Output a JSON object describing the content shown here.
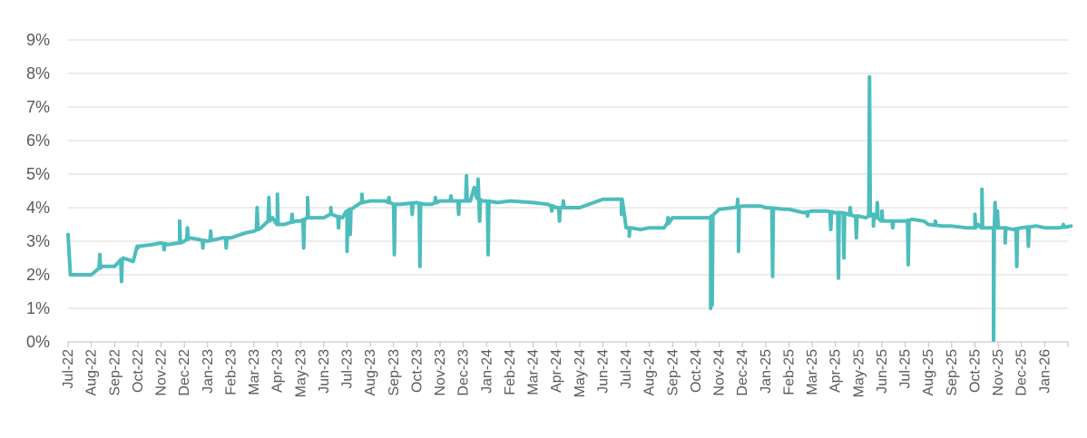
{
  "chart_data": {
    "type": "line",
    "title": "",
    "xlabel": "",
    "ylabel": "",
    "x_unit": "month",
    "x_ticks": [
      "Jul-22",
      "Aug-22",
      "Sep-22",
      "Oct-22",
      "Nov-22",
      "Dec-22",
      "Jan-23",
      "Feb-23",
      "Mar-23",
      "Apr-23",
      "May-23",
      "Jun-23",
      "Jul-23",
      "Aug-23",
      "Sep-23",
      "Oct-23",
      "Nov-23",
      "Dec-23",
      "Jan-24",
      "Feb-24",
      "Mar-24",
      "Apr-24",
      "May-24",
      "Jun-24",
      "Jul-24",
      "Aug-24",
      "Sep-24",
      "Oct-24",
      "Nov-24",
      "Dec-24",
      "Jan-25",
      "Feb-25",
      "Mar-25",
      "Apr-25",
      "May-25",
      "Jun-25",
      "Jul-25",
      "Aug-25",
      "Sep-25",
      "Oct-25",
      "Nov-25",
      "Dec-25",
      "Jan-26"
    ],
    "y_ticks": [
      "0%",
      "1%",
      "2%",
      "3%",
      "4%",
      "5%",
      "6%",
      "7%",
      "8%",
      "9%"
    ],
    "ylim": [
      0,
      9
    ],
    "xlim": [
      "Jul-22",
      "Feb-26"
    ],
    "grid": "horizontal",
    "legend": "none",
    "color": "#4dbdbc",
    "series": [
      {
        "x": [
          "Jul-22",
          "Jul-22",
          "Aug-22",
          "Aug-22",
          "Aug-22",
          "Sep-22",
          "Sep-22",
          "Sep-22",
          "Oct-22",
          "Oct-22",
          "Nov-22",
          "Nov-22",
          "Nov-22",
          "Dec-22",
          "Dec-22",
          "Dec-22",
          "Jan-23",
          "Jan-23",
          "Feb-23",
          "Feb-23",
          "Mar-23",
          "Mar-23",
          "Mar-23",
          "Apr-23",
          "Apr-23",
          "Apr-23",
          "May-23",
          "May-23",
          "May-23",
          "Jun-23",
          "Jun-23",
          "Jun-23",
          "Jul-23",
          "Jul-23",
          "Aug-23",
          "Aug-23",
          "Sep-23",
          "Sep-23",
          "Oct-23",
          "Oct-23",
          "Oct-23",
          "Nov-23",
          "Nov-23",
          "Dec-23",
          "Dec-23",
          "Dec-23",
          "Dec-23",
          "Dec-23",
          "Jan-24",
          "Jan-24",
          "Feb-24",
          "Mar-24",
          "Mar-24",
          "Apr-24",
          "Apr-24",
          "May-24",
          "Jun-24",
          "Jun-24",
          "Jul-24",
          "Jul-24",
          "Jul-24",
          "Aug-24",
          "Aug-24",
          "Sep-24",
          "Sep-24",
          "Oct-24",
          "Oct-24",
          "Oct-24",
          "Nov-24",
          "Nov-24",
          "Dec-24",
          "Dec-24",
          "Dec-24",
          "Jan-25",
          "Jan-25",
          "Jan-25",
          "Feb-25",
          "Feb-25",
          "Mar-25",
          "Mar-25",
          "Apr-25",
          "Apr-25",
          "Apr-25",
          "May-25",
          "May-25",
          "May-25",
          "May-25",
          "Jun-25",
          "Jun-25",
          "Jul-25",
          "Jul-25",
          "Jul-25",
          "Aug-25",
          "Aug-25",
          "Sep-25",
          "Sep-25",
          "Oct-25",
          "Oct-25",
          "Oct-25",
          "Oct-25",
          "Nov-25",
          "Nov-25",
          "Nov-25",
          "Dec-25",
          "Dec-25",
          "Jan-26",
          "Jan-26",
          "Feb-26"
        ],
        "d": [
          1,
          4,
          1,
          15,
          28,
          1,
          12,
          25,
          1,
          20,
          1,
          10,
          25,
          1,
          8,
          20,
          1,
          20,
          1,
          20,
          1,
          10,
          25,
          1,
          10,
          25,
          1,
          10,
          25,
          1,
          10,
          25,
          1,
          20,
          1,
          20,
          1,
          10,
          1,
          10,
          20,
          1,
          20,
          1,
          10,
          15,
          18,
          25,
          1,
          15,
          1,
          1,
          20,
          1,
          20,
          1,
          1,
          25,
          1,
          5,
          20,
          1,
          20,
          1,
          20,
          1,
          20,
          24,
          1,
          20,
          1,
          10,
          25,
          1,
          5,
          25,
          1,
          20,
          1,
          20,
          1,
          10,
          25,
          1,
          10,
          20,
          30,
          1,
          20,
          1,
          10,
          25,
          1,
          20,
          1,
          20,
          1,
          5,
          10,
          25,
          1,
          10,
          20,
          1,
          20,
          1,
          20,
          5
        ],
        "values": [
          3.2,
          2.0,
          2.0,
          2.25,
          2.25,
          2.25,
          2.5,
          2.4,
          2.85,
          2.9,
          2.95,
          2.9,
          2.95,
          3.0,
          3.1,
          3.05,
          3.0,
          3.1,
          3.1,
          3.25,
          3.3,
          3.4,
          3.7,
          3.5,
          3.5,
          3.6,
          3.6,
          3.7,
          3.7,
          3.7,
          3.8,
          3.7,
          3.9,
          4.15,
          4.2,
          4.2,
          4.1,
          4.1,
          4.15,
          4.1,
          4.1,
          4.2,
          4.2,
          4.2,
          4.2,
          4.6,
          4.3,
          4.2,
          4.2,
          4.15,
          4.2,
          4.15,
          4.1,
          4.0,
          4.0,
          4.0,
          4.25,
          4.25,
          3.4,
          3.4,
          3.35,
          3.4,
          3.4,
          3.7,
          3.7,
          3.7,
          3.7,
          3.8,
          3.95,
          4.0,
          4.05,
          4.05,
          4.05,
          4.0,
          4.0,
          3.95,
          3.95,
          3.85,
          3.9,
          3.9,
          3.85,
          3.85,
          3.75,
          3.75,
          3.7,
          3.8,
          3.6,
          3.6,
          3.6,
          3.6,
          3.65,
          3.6,
          3.5,
          3.45,
          3.45,
          3.4,
          3.4,
          3.5,
          3.4,
          3.4,
          3.4,
          3.4,
          3.35,
          3.4,
          3.45,
          3.4,
          3.4,
          3.45
        ],
        "spikes": [
          {
            "x": "Aug-22",
            "d": 12,
            "v": 2.6
          },
          {
            "x": "Sep-22",
            "d": 10,
            "v": 1.8
          },
          {
            "x": "Oct-22",
            "d": 1,
            "v": 2.8
          },
          {
            "x": "Nov-22",
            "d": 5,
            "v": 2.75
          },
          {
            "x": "Nov-22",
            "d": 25,
            "v": 3.6
          },
          {
            "x": "Dec-22",
            "d": 5,
            "v": 3.4
          },
          {
            "x": "Dec-22",
            "d": 25,
            "v": 2.8
          },
          {
            "x": "Jan-23",
            "d": 5,
            "v": 3.3
          },
          {
            "x": "Jan-23",
            "d": 25,
            "v": 2.8
          },
          {
            "x": "Mar-23",
            "d": 5,
            "v": 4.0
          },
          {
            "x": "Mar-23",
            "d": 20,
            "v": 4.3
          },
          {
            "x": "Apr-23",
            "d": 1,
            "v": 4.4
          },
          {
            "x": "Apr-23",
            "d": 20,
            "v": 3.8
          },
          {
            "x": "May-23",
            "d": 5,
            "v": 2.8
          },
          {
            "x": "May-23",
            "d": 10,
            "v": 4.3
          },
          {
            "x": "Jun-23",
            "d": 10,
            "v": 4.0
          },
          {
            "x": "Jun-23",
            "d": 20,
            "v": 3.4
          },
          {
            "x": "Jul-23",
            "d": 1,
            "v": 2.7
          },
          {
            "x": "Jul-23",
            "d": 5,
            "v": 3.2
          },
          {
            "x": "Jul-23",
            "d": 20,
            "v": 4.4
          },
          {
            "x": "Aug-23",
            "d": 25,
            "v": 4.3
          },
          {
            "x": "Sep-23",
            "d": 2,
            "v": 2.6
          },
          {
            "x": "Sep-23",
            "d": 25,
            "v": 3.8
          },
          {
            "x": "Oct-23",
            "d": 5,
            "v": 2.25
          },
          {
            "x": "Oct-23",
            "d": 25,
            "v": 4.3
          },
          {
            "x": "Nov-23",
            "d": 15,
            "v": 4.35
          },
          {
            "x": "Nov-23",
            "d": 25,
            "v": 3.8
          },
          {
            "x": "Dec-23",
            "d": 5,
            "v": 4.95
          },
          {
            "x": "Dec-23",
            "d": 20,
            "v": 4.85
          },
          {
            "x": "Dec-23",
            "d": 22,
            "v": 3.6
          },
          {
            "x": "Jan-24",
            "d": 3,
            "v": 2.6
          },
          {
            "x": "Mar-24",
            "d": 25,
            "v": 3.9
          },
          {
            "x": "Apr-24",
            "d": 5,
            "v": 3.6
          },
          {
            "x": "Apr-24",
            "d": 10,
            "v": 4.2
          },
          {
            "x": "Jun-24",
            "d": 25,
            "v": 3.8
          },
          {
            "x": "Jul-24",
            "d": 5,
            "v": 3.15
          },
          {
            "x": "Aug-24",
            "d": 25,
            "v": 3.7
          },
          {
            "x": "Oct-24",
            "d": 20,
            "v": 1.0
          },
          {
            "x": "Oct-24",
            "d": 22,
            "v": 1.1
          },
          {
            "x": "Nov-24",
            "d": 25,
            "v": 4.25
          },
          {
            "x": "Nov-24",
            "d": 26,
            "v": 2.7
          },
          {
            "x": "Jan-25",
            "d": 10,
            "v": 1.95
          },
          {
            "x": "Feb-25",
            "d": 25,
            "v": 3.75
          },
          {
            "x": "Mar-25",
            "d": 25,
            "v": 3.35
          },
          {
            "x": "Apr-25",
            "d": 5,
            "v": 1.9
          },
          {
            "x": "Apr-25",
            "d": 12,
            "v": 2.5
          },
          {
            "x": "Apr-25",
            "d": 20,
            "v": 4.0
          },
          {
            "x": "Apr-25",
            "d": 28,
            "v": 3.1
          },
          {
            "x": "May-25",
            "d": 15,
            "v": 7.9
          },
          {
            "x": "May-25",
            "d": 20,
            "v": 3.45
          },
          {
            "x": "May-25",
            "d": 25,
            "v": 4.15
          },
          {
            "x": "Jun-25",
            "d": 1,
            "v": 3.9
          },
          {
            "x": "Jun-25",
            "d": 15,
            "v": 3.4
          },
          {
            "x": "Jul-25",
            "d": 5,
            "v": 2.3
          },
          {
            "x": "Aug-25",
            "d": 10,
            "v": 3.6
          },
          {
            "x": "Oct-25",
            "d": 1,
            "v": 3.8
          },
          {
            "x": "Oct-25",
            "d": 10,
            "v": 4.55
          },
          {
            "x": "Oct-25",
            "d": 25,
            "v": 0.05
          },
          {
            "x": "Oct-25",
            "d": 27,
            "v": 4.15
          },
          {
            "x": "Oct-25",
            "d": 30,
            "v": 3.9
          },
          {
            "x": "Nov-25",
            "d": 10,
            "v": 2.95
          },
          {
            "x": "Nov-25",
            "d": 25,
            "v": 2.25
          },
          {
            "x": "Dec-25",
            "d": 10,
            "v": 2.85
          },
          {
            "x": "Dec-25",
            "d": 20,
            "v": 3.45
          },
          {
            "x": "Jan-26",
            "d": 25,
            "v": 3.5
          }
        ]
      }
    ]
  }
}
